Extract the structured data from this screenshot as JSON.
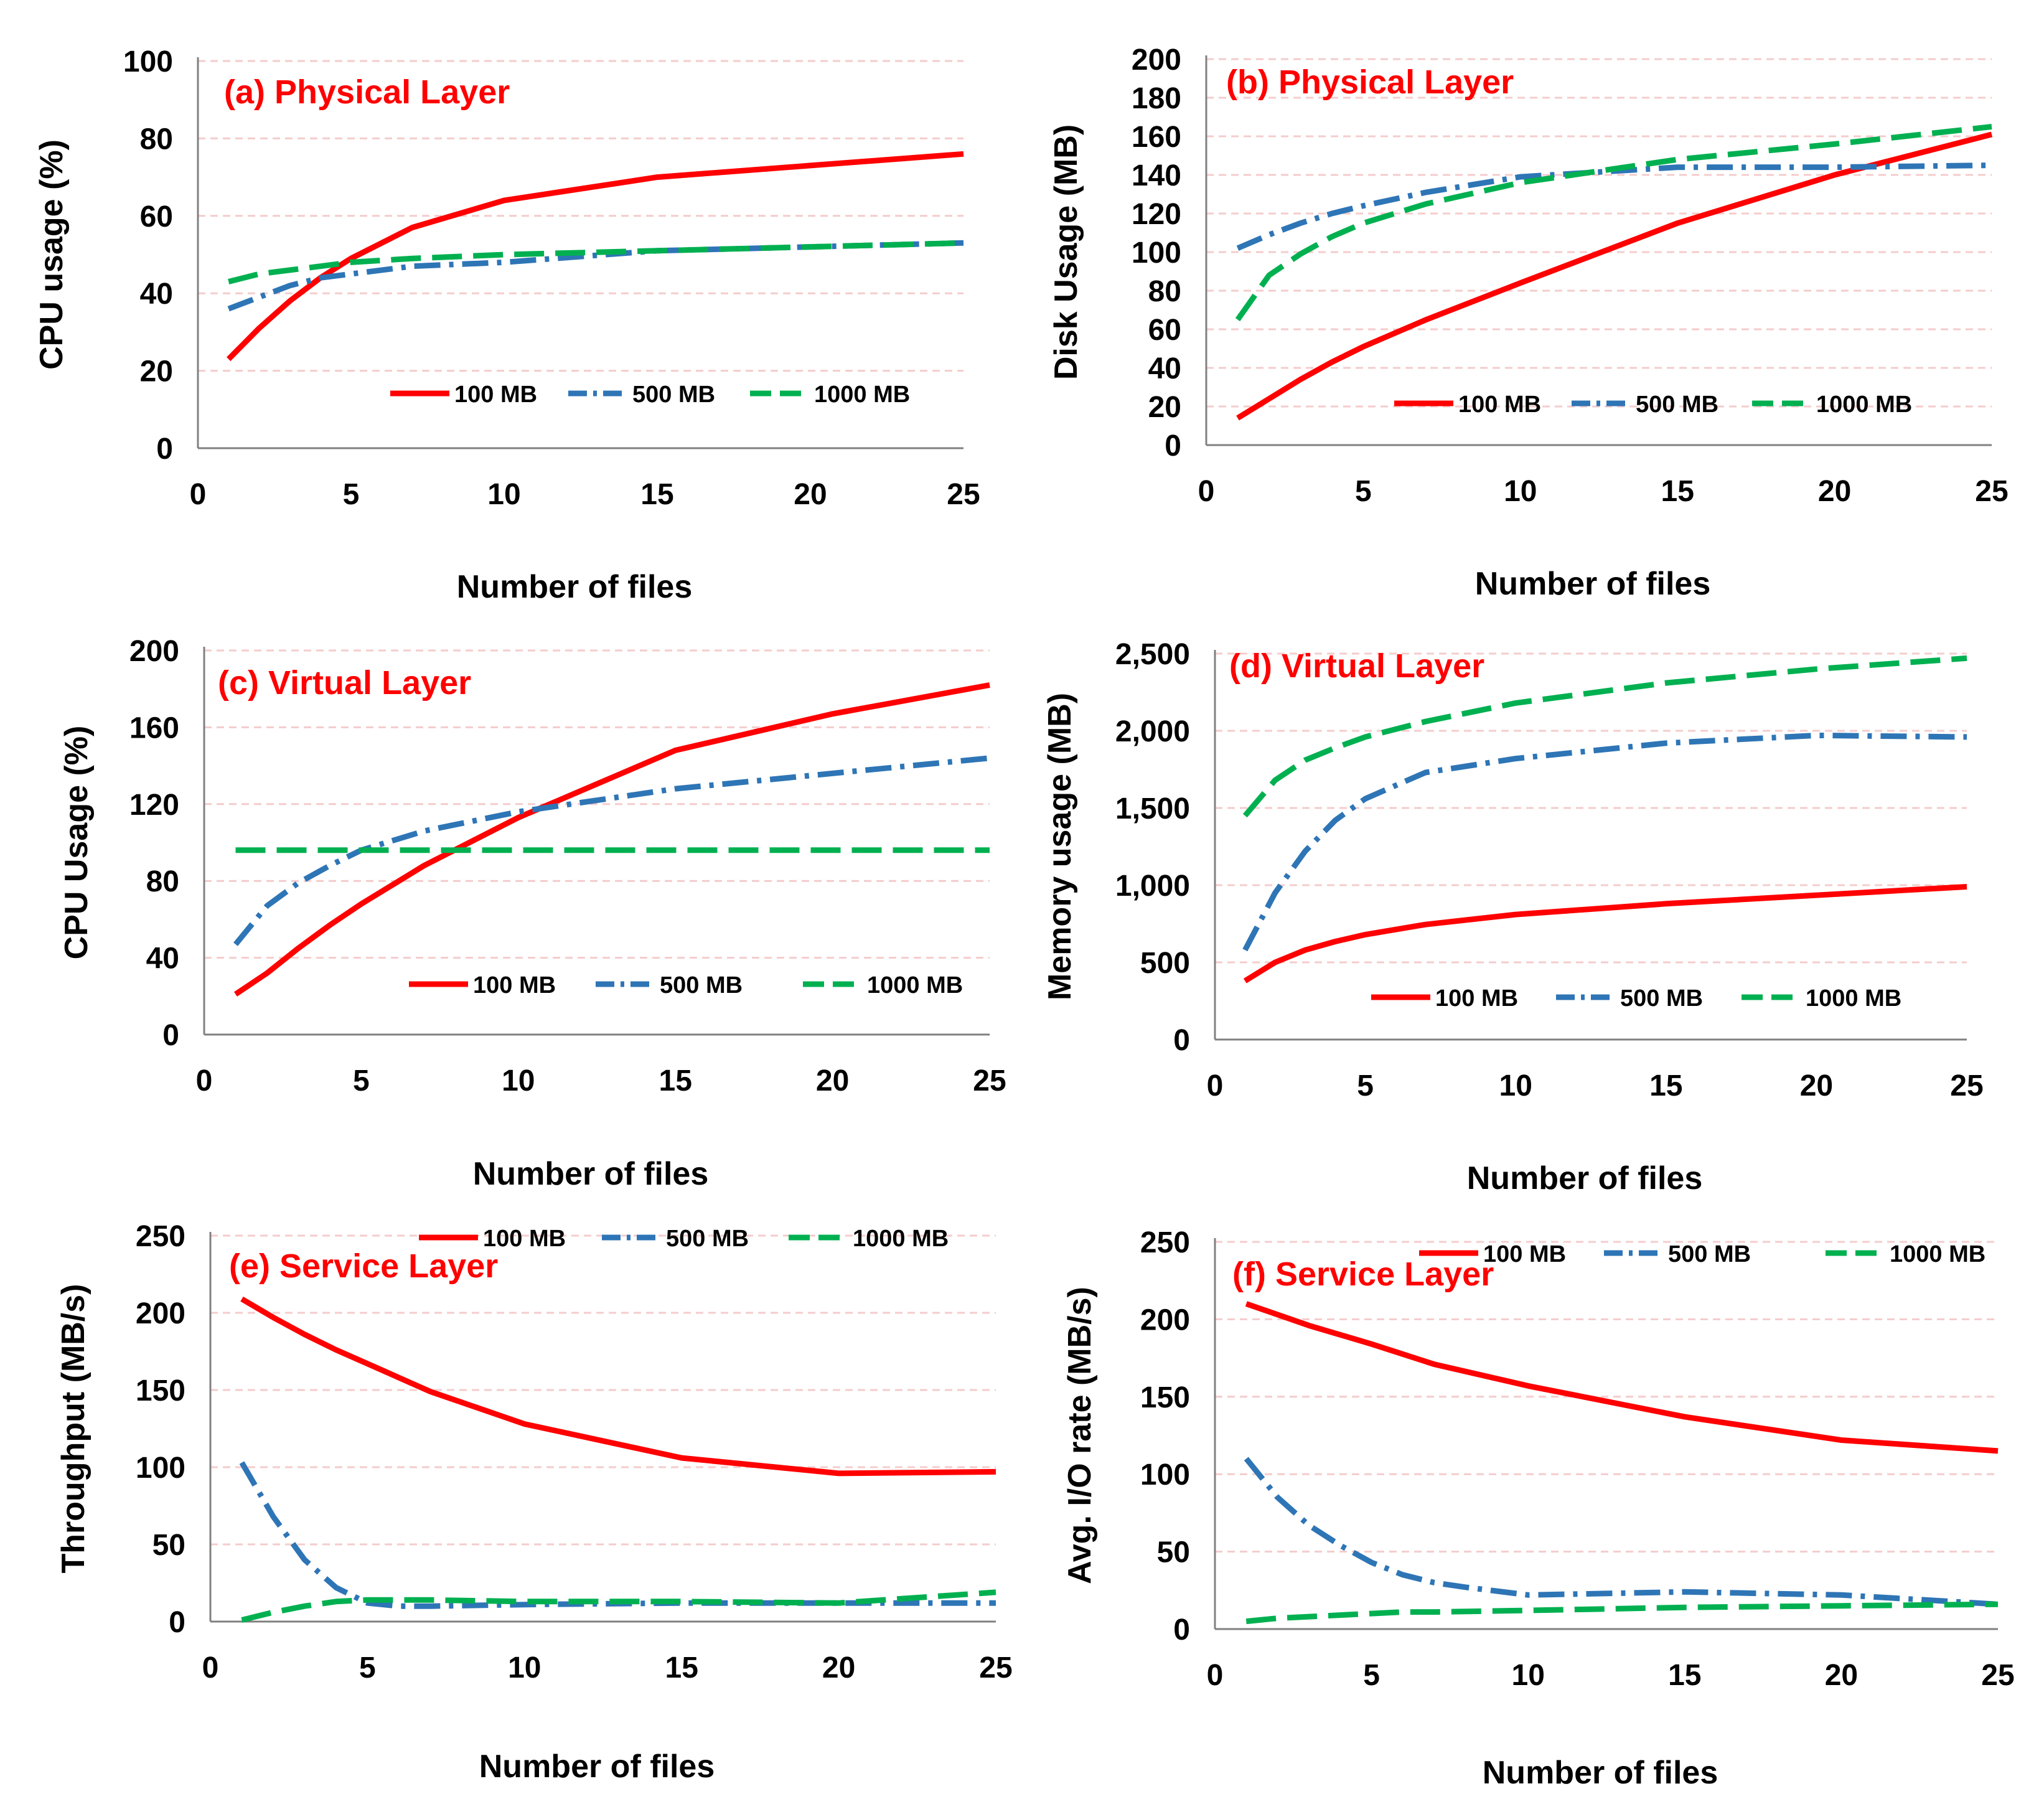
{
  "colors": {
    "s100": "#ff0000",
    "s500": "#2e75b6",
    "s1000": "#00b050",
    "grid": "#f4cccc",
    "title": "#ff0000"
  },
  "chart_data": [
    {
      "id": "a",
      "type": "line",
      "title": "(a) Physical Layer",
      "xlabel": "Number of files",
      "ylabel": "CPU usage (%)",
      "xlim": [
        0,
        25
      ],
      "ylim": [
        0,
        100
      ],
      "xticks": [
        "0",
        "5",
        "10",
        "15",
        "20",
        "25"
      ],
      "yticks": [
        "0",
        "20",
        "40",
        "60",
        "80",
        "100"
      ],
      "legend": "bottom-right",
      "series": [
        {
          "name": "100 MB",
          "x": [
            1,
            2,
            3,
            4,
            5,
            7,
            10,
            15,
            20,
            25
          ],
          "values": [
            23,
            31,
            38,
            44,
            49,
            57,
            64,
            70,
            73,
            76
          ]
        },
        {
          "name": "500 MB",
          "x": [
            1,
            2,
            3,
            4,
            5,
            7,
            10,
            15,
            20,
            25
          ],
          "values": [
            36,
            39,
            42,
            44,
            45,
            47,
            48,
            51,
            52,
            53
          ]
        },
        {
          "name": "1000 MB",
          "x": [
            1,
            2,
            3,
            4,
            5,
            7,
            10,
            15,
            20,
            25
          ],
          "values": [
            43,
            45,
            46,
            47,
            48,
            49,
            50,
            51,
            52,
            53
          ]
        }
      ]
    },
    {
      "id": "b",
      "type": "line",
      "title": "(b) Physical Layer",
      "xlabel": "Number of files",
      "ylabel": "Disk Usage (MB)",
      "xlim": [
        0,
        25
      ],
      "ylim": [
        0,
        200
      ],
      "xticks": [
        "0",
        "5",
        "10",
        "15",
        "20",
        "25"
      ],
      "yticks": [
        "0",
        "20",
        "40",
        "60",
        "80",
        "100",
        "120",
        "140",
        "160",
        "180",
        "200"
      ],
      "legend": "bottom-right",
      "series": [
        {
          "name": "100 MB",
          "x": [
            1,
            2,
            3,
            4,
            5,
            7,
            10,
            15,
            20,
            25
          ],
          "values": [
            14,
            24,
            34,
            43,
            51,
            65,
            84,
            115,
            140,
            161
          ]
        },
        {
          "name": "500 MB",
          "x": [
            1,
            2,
            3,
            4,
            5,
            7,
            10,
            15,
            20,
            25
          ],
          "values": [
            102,
            109,
            115,
            120,
            124,
            131,
            139,
            144,
            144,
            145
          ]
        },
        {
          "name": "1000 MB",
          "x": [
            1,
            2,
            3,
            4,
            5,
            7,
            10,
            15,
            20,
            25
          ],
          "values": [
            65,
            88,
            99,
            108,
            115,
            125,
            136,
            148,
            156,
            165
          ]
        }
      ]
    },
    {
      "id": "c",
      "type": "line",
      "title": "(c) Virtual Layer",
      "xlabel": "Number of files",
      "ylabel": "CPU Usage (%)",
      "xlim": [
        0,
        25
      ],
      "ylim": [
        0,
        200
      ],
      "xticks": [
        "0",
        "5",
        "10",
        "15",
        "20",
        "25"
      ],
      "yticks": [
        "0",
        "40",
        "80",
        "120",
        "160",
        "200"
      ],
      "legend": "bottom-right",
      "series": [
        {
          "name": "100 MB",
          "x": [
            1,
            2,
            3,
            4,
            5,
            7,
            10,
            15,
            20,
            25
          ],
          "values": [
            21,
            32,
            45,
            57,
            68,
            88,
            113,
            148,
            167,
            182
          ]
        },
        {
          "name": "500 MB",
          "x": [
            1,
            2,
            3,
            4,
            5,
            7,
            10,
            15,
            20,
            25
          ],
          "values": [
            47,
            67,
            79,
            88,
            96,
            106,
            116,
            128,
            136,
            144
          ]
        },
        {
          "name": "1000 MB",
          "x": [
            1,
            25
          ],
          "values": [
            96,
            96
          ]
        }
      ]
    },
    {
      "id": "d",
      "type": "line",
      "title": "(d) Virtual Layer",
      "xlabel": "Number of files",
      "ylabel": "Memory usage (MB)",
      "xlim": [
        0,
        25
      ],
      "ylim": [
        0,
        2500
      ],
      "xticks": [
        "0",
        "5",
        "10",
        "15",
        "20",
        "25"
      ],
      "yticks": [
        "0",
        "500",
        "1,000",
        "1,500",
        "2,000",
        "2,500"
      ],
      "legend": "bottom-right",
      "series": [
        {
          "name": "100 MB",
          "x": [
            1,
            2,
            3,
            4,
            5,
            7,
            10,
            15,
            20,
            25
          ],
          "values": [
            380,
            500,
            580,
            635,
            680,
            745,
            810,
            880,
            935,
            990
          ]
        },
        {
          "name": "500 MB",
          "x": [
            1,
            2,
            3,
            4,
            5,
            7,
            10,
            15,
            20,
            25
          ],
          "values": [
            580,
            950,
            1220,
            1420,
            1560,
            1730,
            1820,
            1920,
            1970,
            1960
          ]
        },
        {
          "name": "1000 MB",
          "x": [
            1,
            2,
            3,
            4,
            5,
            7,
            10,
            15,
            20,
            25
          ],
          "values": [
            1450,
            1680,
            1810,
            1890,
            1960,
            2060,
            2180,
            2310,
            2400,
            2470
          ]
        }
      ]
    },
    {
      "id": "e",
      "type": "line",
      "title": "(e) Service Layer",
      "xlabel": "Number of files",
      "ylabel": "Throughput (MB/s)",
      "xlim": [
        0,
        25
      ],
      "ylim": [
        0,
        250
      ],
      "xticks": [
        "0",
        "5",
        "10",
        "15",
        "20",
        "25"
      ],
      "yticks": [
        "0",
        "50",
        "100",
        "150",
        "200",
        "250"
      ],
      "legend": "top-right",
      "series": [
        {
          "name": "100 MB",
          "x": [
            1,
            2,
            3,
            4,
            5,
            7,
            10,
            15,
            20,
            25
          ],
          "values": [
            209,
            197,
            186,
            176,
            167,
            149,
            128,
            106,
            96,
            97
          ]
        },
        {
          "name": "500 MB",
          "x": [
            1,
            2,
            3,
            4,
            5,
            6,
            7,
            10,
            15,
            20,
            25
          ],
          "values": [
            103,
            68,
            40,
            22,
            12,
            10,
            10,
            11,
            12,
            12,
            12
          ]
        },
        {
          "name": "1000 MB",
          "x": [
            1,
            2,
            3,
            4,
            5,
            6,
            7,
            10,
            15,
            20,
            25
          ],
          "values": [
            1,
            6,
            10,
            13,
            14,
            14,
            14,
            13,
            13,
            12,
            19
          ]
        }
      ]
    },
    {
      "id": "f",
      "type": "line",
      "title": "(f) Service Layer",
      "xlabel": "Number of files",
      "ylabel": "Avg. I/O rate (MB/s)",
      "xlim": [
        0,
        25
      ],
      "ylim": [
        0,
        250
      ],
      "xticks": [
        "0",
        "5",
        "10",
        "15",
        "20",
        "25"
      ],
      "yticks": [
        "0",
        "50",
        "100",
        "150",
        "200",
        "250"
      ],
      "legend": "top-right",
      "series": [
        {
          "name": "100 MB",
          "x": [
            1,
            2,
            3,
            4,
            5,
            7,
            10,
            15,
            20,
            25
          ],
          "values": [
            210,
            203,
            196,
            190,
            184,
            171,
            157,
            137,
            122,
            115
          ]
        },
        {
          "name": "500 MB",
          "x": [
            1,
            2,
            3,
            4,
            5,
            6,
            7,
            8,
            10,
            15,
            20,
            25
          ],
          "values": [
            110,
            85,
            67,
            54,
            43,
            35,
            30,
            27,
            22,
            24,
            22,
            16
          ]
        },
        {
          "name": "1000 MB",
          "x": [
            1,
            2,
            3,
            4,
            5,
            6,
            7,
            10,
            15,
            20,
            25
          ],
          "values": [
            5,
            7,
            8,
            9,
            10,
            11,
            11,
            12,
            14,
            15,
            16
          ]
        }
      ]
    }
  ]
}
